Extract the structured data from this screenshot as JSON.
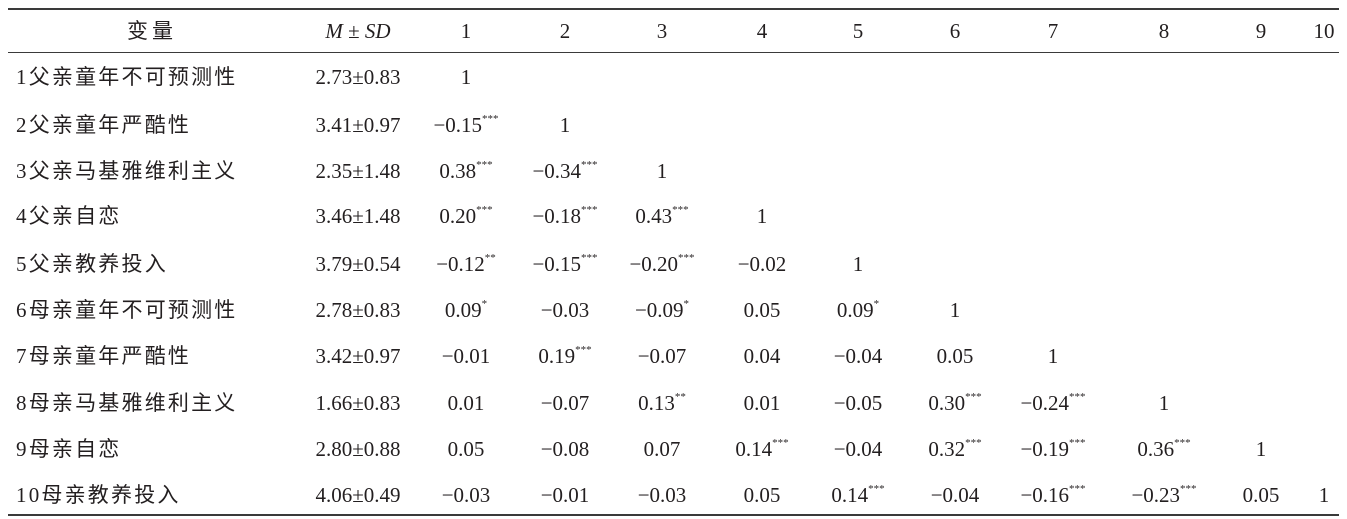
{
  "table": {
    "headers": {
      "variable": "变量",
      "m": "M",
      "pm": " ± ",
      "sd": "SD",
      "cols": [
        "1",
        "2",
        "3",
        "4",
        "5",
        "6",
        "7",
        "8",
        "9",
        "10"
      ]
    },
    "rows": [
      {
        "label": "1父亲童年不可预测性",
        "msd": "2.73±0.83",
        "cells": [
          {
            "v": "1",
            "s": ""
          }
        ]
      },
      {
        "label": "2父亲童年严酷性",
        "msd": "3.41±0.97",
        "cells": [
          {
            "v": "−0.15",
            "s": "***"
          },
          {
            "v": "1",
            "s": ""
          }
        ]
      },
      {
        "label": "3父亲马基雅维利主义",
        "msd": "2.35±1.48",
        "cells": [
          {
            "v": "0.38",
            "s": "***"
          },
          {
            "v": "−0.34",
            "s": "***"
          },
          {
            "v": "1",
            "s": ""
          }
        ]
      },
      {
        "label": "4父亲自恋",
        "msd": "3.46±1.48",
        "cells": [
          {
            "v": "0.20",
            "s": "***"
          },
          {
            "v": "−0.18",
            "s": "***"
          },
          {
            "v": "0.43",
            "s": "***"
          },
          {
            "v": "1",
            "s": ""
          }
        ]
      },
      {
        "label": "5父亲教养投入",
        "msd": "3.79±0.54",
        "cells": [
          {
            "v": "−0.12",
            "s": "**"
          },
          {
            "v": "−0.15",
            "s": "***"
          },
          {
            "v": "−0.20",
            "s": "***"
          },
          {
            "v": "−0.02",
            "s": ""
          },
          {
            "v": "1",
            "s": ""
          }
        ]
      },
      {
        "label": "6母亲童年不可预测性",
        "msd": "2.78±0.83",
        "cells": [
          {
            "v": "0.09",
            "s": "*"
          },
          {
            "v": "−0.03",
            "s": ""
          },
          {
            "v": "−0.09",
            "s": "*"
          },
          {
            "v": "0.05",
            "s": ""
          },
          {
            "v": "0.09",
            "s": "*"
          },
          {
            "v": "1",
            "s": ""
          }
        ]
      },
      {
        "label": "7母亲童年严酷性",
        "msd": "3.42±0.97",
        "cells": [
          {
            "v": "−0.01",
            "s": ""
          },
          {
            "v": "0.19",
            "s": "***"
          },
          {
            "v": "−0.07",
            "s": ""
          },
          {
            "v": "0.04",
            "s": ""
          },
          {
            "v": "−0.04",
            "s": ""
          },
          {
            "v": "0.05",
            "s": ""
          },
          {
            "v": "1",
            "s": ""
          }
        ]
      },
      {
        "label": "8母亲马基雅维利主义",
        "msd": "1.66±0.83",
        "cells": [
          {
            "v": "0.01",
            "s": ""
          },
          {
            "v": "−0.07",
            "s": ""
          },
          {
            "v": "0.13",
            "s": "**"
          },
          {
            "v": "0.01",
            "s": ""
          },
          {
            "v": "−0.05",
            "s": ""
          },
          {
            "v": "0.30",
            "s": "***"
          },
          {
            "v": "−0.24",
            "s": "***"
          },
          {
            "v": "1",
            "s": ""
          }
        ]
      },
      {
        "label": "9母亲自恋",
        "msd": "2.80±0.88",
        "cells": [
          {
            "v": "0.05",
            "s": ""
          },
          {
            "v": "−0.08",
            "s": ""
          },
          {
            "v": "0.07",
            "s": ""
          },
          {
            "v": "0.14",
            "s": "***"
          },
          {
            "v": "−0.04",
            "s": ""
          },
          {
            "v": "0.32",
            "s": "***"
          },
          {
            "v": "−0.19",
            "s": "***"
          },
          {
            "v": "0.36",
            "s": "***"
          },
          {
            "v": "1",
            "s": ""
          }
        ]
      },
      {
        "label": "10母亲教养投入",
        "msd": "4.06±0.49",
        "cells": [
          {
            "v": "−0.03",
            "s": ""
          },
          {
            "v": "−0.01",
            "s": ""
          },
          {
            "v": "−0.03",
            "s": ""
          },
          {
            "v": "0.05",
            "s": ""
          },
          {
            "v": "0.14",
            "s": "***"
          },
          {
            "v": "−0.04",
            "s": ""
          },
          {
            "v": "−0.16",
            "s": "***"
          },
          {
            "v": "−0.23",
            "s": "***"
          },
          {
            "v": "0.05",
            "s": ""
          },
          {
            "v": "1",
            "s": ""
          }
        ]
      }
    ]
  }
}
